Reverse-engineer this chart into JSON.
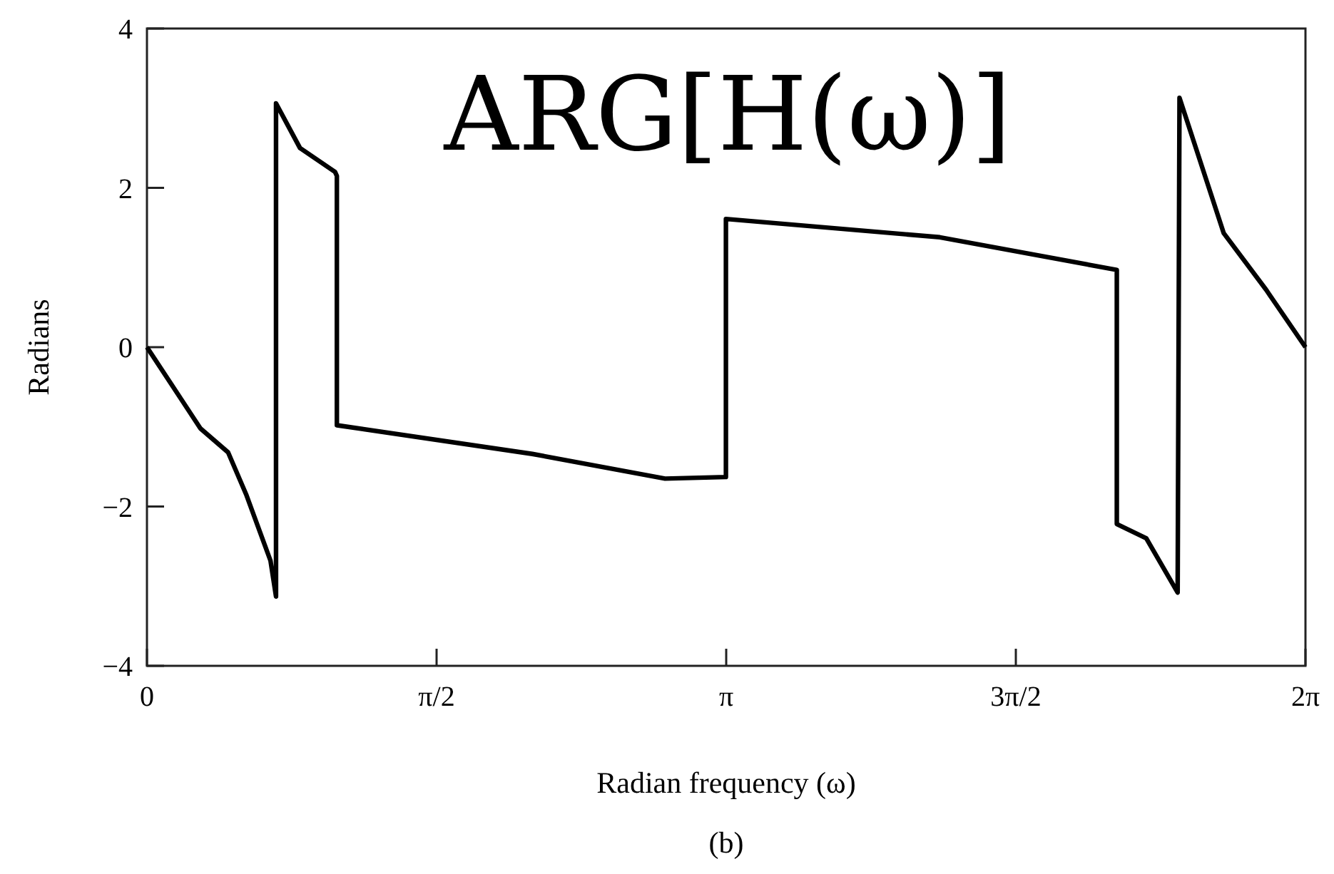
{
  "chart_data": {
    "type": "line",
    "title": "ARG[H(ω)]",
    "xlabel": "Radian frequency (ω)",
    "ylabel": "Radians",
    "annotations": [
      "(b)"
    ],
    "xlim": [
      0,
      6.2832
    ],
    "ylim": [
      -4,
      4
    ],
    "xticks": [
      {
        "value": 0,
        "label": "0"
      },
      {
        "value": 1.5708,
        "label": "π/2"
      },
      {
        "value": 3.1416,
        "label": "π"
      },
      {
        "value": 4.7124,
        "label": "3π/2"
      },
      {
        "value": 6.2832,
        "label": "2π"
      }
    ],
    "yticks": [
      {
        "value": -4,
        "label": "−4"
      },
      {
        "value": -2,
        "label": "−2"
      },
      0,
      2,
      4
    ],
    "grid": false,
    "marker": "none",
    "line_style": "solid",
    "series": [
      {
        "color": "#000000",
        "x": [
          0,
          0.29,
          0.44,
          0.54,
          0.67,
          0.7,
          0.7,
          0.83,
          1.02,
          1.03,
          1.03,
          2.09,
          2.81,
          3.14,
          3.14,
          4.3,
          5.26,
          5.26,
          5.42,
          5.59,
          5.6,
          5.84,
          6.07,
          6.2832
        ],
        "values": [
          0,
          -1.02,
          -1.32,
          -1.86,
          -2.68,
          -3.13,
          3.06,
          2.5,
          2.2,
          2.15,
          -0.98,
          -1.34,
          -1.65,
          -1.63,
          1.61,
          1.38,
          0.97,
          -2.22,
          -2.4,
          -3.08,
          3.13,
          1.43,
          0.72,
          0
        ]
      }
    ]
  }
}
